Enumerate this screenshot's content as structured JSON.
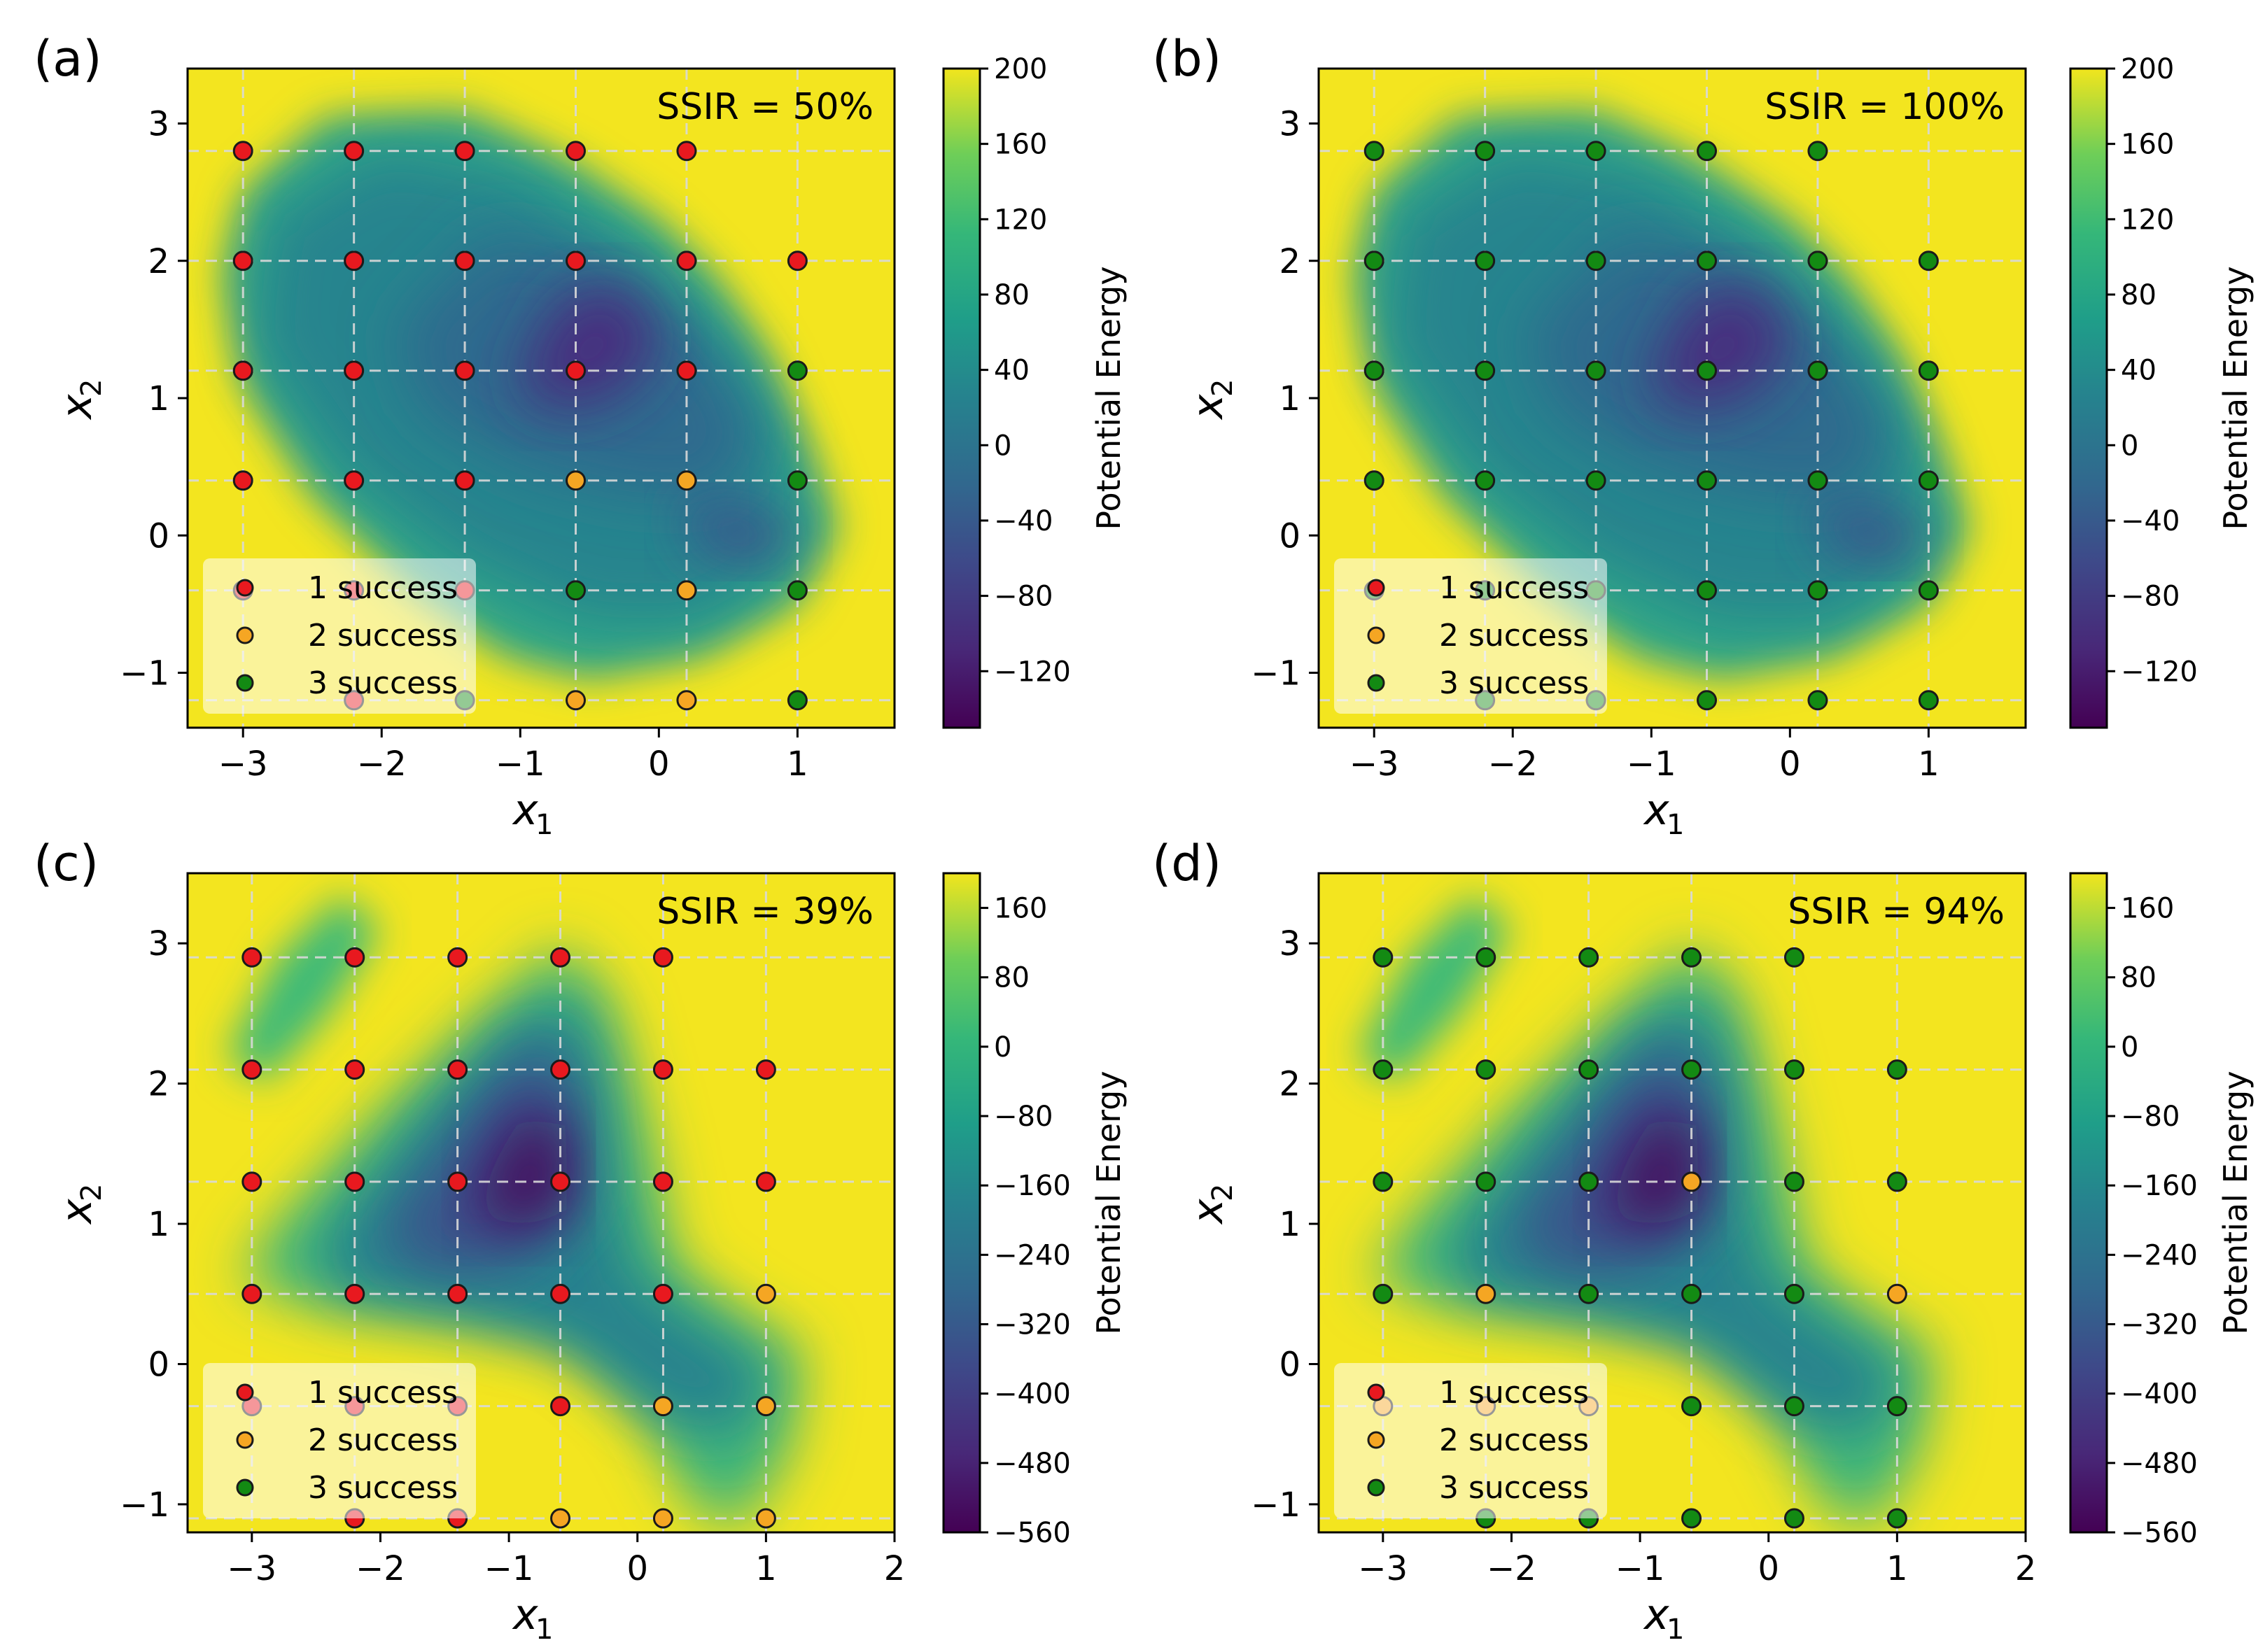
{
  "figure": {
    "colorbar_label": "Potential Energy",
    "xlabel": "x",
    "xlabel_sub": "1",
    "ylabel": "x",
    "ylabel_sub": "2"
  },
  "legend": [
    {
      "label": "1 success",
      "color": "#e8191f"
    },
    {
      "label": "2 success",
      "color": "#f5a623"
    },
    {
      "label": "3 success",
      "color": "#138a13"
    }
  ],
  "chart_data": [
    {
      "panel": "(a)",
      "type": "scatter",
      "annotation": "SSIR = 50%",
      "xlim": [
        -3.4,
        1.7
      ],
      "ylim": [
        -1.4,
        3.4
      ],
      "xticks": [
        -3,
        -2,
        -1,
        0,
        1
      ],
      "yticks": [
        -1,
        0,
        1,
        2,
        3
      ],
      "grid_x": [
        -3.0,
        -2.2,
        -1.4,
        -0.6,
        0.2,
        1.0
      ],
      "grid_y": [
        -1.2,
        -0.4,
        0.4,
        1.2,
        2.0,
        2.8
      ],
      "colorbar": {
        "min": -150,
        "max": 200,
        "ticks": [
          200,
          160,
          120,
          80,
          40,
          0,
          -40,
          -80,
          -120
        ]
      },
      "landscape": "a",
      "points": [
        {
          "x": -3.0,
          "y": 2.8,
          "s": 1
        },
        {
          "x": -2.2,
          "y": 2.8,
          "s": 1
        },
        {
          "x": -1.4,
          "y": 2.8,
          "s": 1
        },
        {
          "x": -0.6,
          "y": 2.8,
          "s": 1
        },
        {
          "x": 0.2,
          "y": 2.8,
          "s": 1
        },
        {
          "x": -3.0,
          "y": 2.0,
          "s": 1
        },
        {
          "x": -2.2,
          "y": 2.0,
          "s": 1
        },
        {
          "x": -1.4,
          "y": 2.0,
          "s": 1
        },
        {
          "x": -0.6,
          "y": 2.0,
          "s": 1
        },
        {
          "x": 0.2,
          "y": 2.0,
          "s": 1
        },
        {
          "x": 1.0,
          "y": 2.0,
          "s": 1
        },
        {
          "x": -3.0,
          "y": 1.2,
          "s": 1
        },
        {
          "x": -2.2,
          "y": 1.2,
          "s": 1
        },
        {
          "x": -1.4,
          "y": 1.2,
          "s": 1
        },
        {
          "x": -0.6,
          "y": 1.2,
          "s": 1
        },
        {
          "x": 0.2,
          "y": 1.2,
          "s": 1
        },
        {
          "x": 1.0,
          "y": 1.2,
          "s": 3
        },
        {
          "x": -3.0,
          "y": 0.4,
          "s": 1
        },
        {
          "x": -2.2,
          "y": 0.4,
          "s": 1
        },
        {
          "x": -1.4,
          "y": 0.4,
          "s": 1
        },
        {
          "x": -0.6,
          "y": 0.4,
          "s": 2
        },
        {
          "x": 0.2,
          "y": 0.4,
          "s": 2
        },
        {
          "x": 1.0,
          "y": 0.4,
          "s": 3
        },
        {
          "x": -3.0,
          "y": -0.4,
          "s": 1
        },
        {
          "x": -2.2,
          "y": -0.4,
          "s": 1
        },
        {
          "x": -1.4,
          "y": -0.4,
          "s": 1
        },
        {
          "x": -0.6,
          "y": -0.4,
          "s": 3
        },
        {
          "x": 0.2,
          "y": -0.4,
          "s": 2
        },
        {
          "x": 1.0,
          "y": -0.4,
          "s": 3
        },
        {
          "x": -2.2,
          "y": -1.2,
          "s": 1
        },
        {
          "x": -1.4,
          "y": -1.2,
          "s": 3
        },
        {
          "x": -0.6,
          "y": -1.2,
          "s": 2
        },
        {
          "x": 0.2,
          "y": -1.2,
          "s": 2
        },
        {
          "x": 1.0,
          "y": -1.2,
          "s": 3
        }
      ]
    },
    {
      "panel": "(b)",
      "type": "scatter",
      "annotation": "SSIR = 100%",
      "xlim": [
        -3.4,
        1.7
      ],
      "ylim": [
        -1.4,
        3.4
      ],
      "xticks": [
        -3,
        -2,
        -1,
        0,
        1
      ],
      "yticks": [
        -1,
        0,
        1,
        2,
        3
      ],
      "grid_x": [
        -3.0,
        -2.2,
        -1.4,
        -0.6,
        0.2,
        1.0
      ],
      "grid_y": [
        -1.2,
        -0.4,
        0.4,
        1.2,
        2.0,
        2.8
      ],
      "colorbar": {
        "min": -150,
        "max": 200,
        "ticks": [
          200,
          160,
          120,
          80,
          40,
          0,
          -40,
          -80,
          -120
        ]
      },
      "landscape": "a",
      "points": [
        {
          "x": -3.0,
          "y": 2.8,
          "s": 3
        },
        {
          "x": -2.2,
          "y": 2.8,
          "s": 3
        },
        {
          "x": -1.4,
          "y": 2.8,
          "s": 3
        },
        {
          "x": -0.6,
          "y": 2.8,
          "s": 3
        },
        {
          "x": 0.2,
          "y": 2.8,
          "s": 3
        },
        {
          "x": -3.0,
          "y": 2.0,
          "s": 3
        },
        {
          "x": -2.2,
          "y": 2.0,
          "s": 3
        },
        {
          "x": -1.4,
          "y": 2.0,
          "s": 3
        },
        {
          "x": -0.6,
          "y": 2.0,
          "s": 3
        },
        {
          "x": 0.2,
          "y": 2.0,
          "s": 3
        },
        {
          "x": 1.0,
          "y": 2.0,
          "s": 3
        },
        {
          "x": -3.0,
          "y": 1.2,
          "s": 3
        },
        {
          "x": -2.2,
          "y": 1.2,
          "s": 3
        },
        {
          "x": -1.4,
          "y": 1.2,
          "s": 3
        },
        {
          "x": -0.6,
          "y": 1.2,
          "s": 3
        },
        {
          "x": 0.2,
          "y": 1.2,
          "s": 3
        },
        {
          "x": 1.0,
          "y": 1.2,
          "s": 3
        },
        {
          "x": -3.0,
          "y": 0.4,
          "s": 3
        },
        {
          "x": -2.2,
          "y": 0.4,
          "s": 3
        },
        {
          "x": -1.4,
          "y": 0.4,
          "s": 3
        },
        {
          "x": -0.6,
          "y": 0.4,
          "s": 3
        },
        {
          "x": 0.2,
          "y": 0.4,
          "s": 3
        },
        {
          "x": 1.0,
          "y": 0.4,
          "s": 3
        },
        {
          "x": -3.0,
          "y": -0.4,
          "s": 3
        },
        {
          "x": -2.2,
          "y": -0.4,
          "s": 3
        },
        {
          "x": -1.4,
          "y": -0.4,
          "s": 3
        },
        {
          "x": -0.6,
          "y": -0.4,
          "s": 3
        },
        {
          "x": 0.2,
          "y": -0.4,
          "s": 3
        },
        {
          "x": 1.0,
          "y": -0.4,
          "s": 3
        },
        {
          "x": -2.2,
          "y": -1.2,
          "s": 3
        },
        {
          "x": -1.4,
          "y": -1.2,
          "s": 3
        },
        {
          "x": -0.6,
          "y": -1.2,
          "s": 3
        },
        {
          "x": 0.2,
          "y": -1.2,
          "s": 3
        },
        {
          "x": 1.0,
          "y": -1.2,
          "s": 3
        }
      ]
    },
    {
      "panel": "(c)",
      "type": "scatter",
      "annotation": "SSIR = 39%",
      "xlim": [
        -3.5,
        2.0
      ],
      "ylim": [
        -1.2,
        3.5
      ],
      "xticks": [
        -3,
        -2,
        -1,
        0,
        1,
        2
      ],
      "yticks": [
        -1,
        0,
        1,
        2,
        3
      ],
      "grid_x": [
        -3.0,
        -2.2,
        -1.4,
        -0.6,
        0.2,
        1.0
      ],
      "grid_y": [
        -1.1,
        -0.3,
        0.5,
        1.3,
        2.1,
        2.9
      ],
      "colorbar": {
        "min": -560,
        "max": 200,
        "ticks": [
          160,
          80,
          0,
          -80,
          -160,
          -240,
          -320,
          -400,
          -480,
          -560
        ]
      },
      "landscape": "c",
      "points": [
        {
          "x": -3.0,
          "y": 2.9,
          "s": 1
        },
        {
          "x": -2.2,
          "y": 2.9,
          "s": 1
        },
        {
          "x": -1.4,
          "y": 2.9,
          "s": 1
        },
        {
          "x": -0.6,
          "y": 2.9,
          "s": 1
        },
        {
          "x": 0.2,
          "y": 2.9,
          "s": 1
        },
        {
          "x": -3.0,
          "y": 2.1,
          "s": 1
        },
        {
          "x": -2.2,
          "y": 2.1,
          "s": 1
        },
        {
          "x": -1.4,
          "y": 2.1,
          "s": 1
        },
        {
          "x": -0.6,
          "y": 2.1,
          "s": 1
        },
        {
          "x": 0.2,
          "y": 2.1,
          "s": 1
        },
        {
          "x": 1.0,
          "y": 2.1,
          "s": 1
        },
        {
          "x": -3.0,
          "y": 1.3,
          "s": 1
        },
        {
          "x": -2.2,
          "y": 1.3,
          "s": 1
        },
        {
          "x": -1.4,
          "y": 1.3,
          "s": 1
        },
        {
          "x": -0.6,
          "y": 1.3,
          "s": 1
        },
        {
          "x": 0.2,
          "y": 1.3,
          "s": 1
        },
        {
          "x": 1.0,
          "y": 1.3,
          "s": 1
        },
        {
          "x": -3.0,
          "y": 0.5,
          "s": 1
        },
        {
          "x": -2.2,
          "y": 0.5,
          "s": 1
        },
        {
          "x": -1.4,
          "y": 0.5,
          "s": 1
        },
        {
          "x": -0.6,
          "y": 0.5,
          "s": 1
        },
        {
          "x": 0.2,
          "y": 0.5,
          "s": 1
        },
        {
          "x": 1.0,
          "y": 0.5,
          "s": 2
        },
        {
          "x": -3.0,
          "y": -0.3,
          "s": 1
        },
        {
          "x": -2.2,
          "y": -0.3,
          "s": 1
        },
        {
          "x": -1.4,
          "y": -0.3,
          "s": 1
        },
        {
          "x": -0.6,
          "y": -0.3,
          "s": 1
        },
        {
          "x": 0.2,
          "y": -0.3,
          "s": 2
        },
        {
          "x": 1.0,
          "y": -0.3,
          "s": 2
        },
        {
          "x": -2.2,
          "y": -1.1,
          "s": 1
        },
        {
          "x": -1.4,
          "y": -1.1,
          "s": 1
        },
        {
          "x": -0.6,
          "y": -1.1,
          "s": 2
        },
        {
          "x": 0.2,
          "y": -1.1,
          "s": 2
        },
        {
          "x": 1.0,
          "y": -1.1,
          "s": 2
        }
      ]
    },
    {
      "panel": "(d)",
      "type": "scatter",
      "annotation": "SSIR = 94%",
      "xlim": [
        -3.5,
        2.0
      ],
      "ylim": [
        -1.2,
        3.5
      ],
      "xticks": [
        -3,
        -2,
        -1,
        0,
        1,
        2
      ],
      "yticks": [
        -1,
        0,
        1,
        2,
        3
      ],
      "grid_x": [
        -3.0,
        -2.2,
        -1.4,
        -0.6,
        0.2,
        1.0
      ],
      "grid_y": [
        -1.1,
        -0.3,
        0.5,
        1.3,
        2.1,
        2.9
      ],
      "colorbar": {
        "min": -560,
        "max": 200,
        "ticks": [
          160,
          80,
          0,
          -80,
          -160,
          -240,
          -320,
          -400,
          -480,
          -560
        ]
      },
      "landscape": "c",
      "points": [
        {
          "x": -3.0,
          "y": 2.9,
          "s": 3
        },
        {
          "x": -2.2,
          "y": 2.9,
          "s": 3
        },
        {
          "x": -1.4,
          "y": 2.9,
          "s": 3
        },
        {
          "x": -0.6,
          "y": 2.9,
          "s": 3
        },
        {
          "x": 0.2,
          "y": 2.9,
          "s": 3
        },
        {
          "x": -3.0,
          "y": 2.1,
          "s": 3
        },
        {
          "x": -2.2,
          "y": 2.1,
          "s": 3
        },
        {
          "x": -1.4,
          "y": 2.1,
          "s": 3
        },
        {
          "x": -0.6,
          "y": 2.1,
          "s": 3
        },
        {
          "x": 0.2,
          "y": 2.1,
          "s": 3
        },
        {
          "x": 1.0,
          "y": 2.1,
          "s": 3
        },
        {
          "x": -3.0,
          "y": 1.3,
          "s": 3
        },
        {
          "x": -2.2,
          "y": 1.3,
          "s": 3
        },
        {
          "x": -1.4,
          "y": 1.3,
          "s": 3
        },
        {
          "x": -0.6,
          "y": 1.3,
          "s": 2
        },
        {
          "x": 0.2,
          "y": 1.3,
          "s": 3
        },
        {
          "x": 1.0,
          "y": 1.3,
          "s": 3
        },
        {
          "x": -3.0,
          "y": 0.5,
          "s": 3
        },
        {
          "x": -2.2,
          "y": 0.5,
          "s": 2
        },
        {
          "x": -1.4,
          "y": 0.5,
          "s": 3
        },
        {
          "x": -0.6,
          "y": 0.5,
          "s": 3
        },
        {
          "x": 0.2,
          "y": 0.5,
          "s": 3
        },
        {
          "x": 1.0,
          "y": 0.5,
          "s": 2
        },
        {
          "x": -3.0,
          "y": -0.3,
          "s": 2
        },
        {
          "x": -2.2,
          "y": -0.3,
          "s": 2
        },
        {
          "x": -1.4,
          "y": -0.3,
          "s": 2
        },
        {
          "x": -0.6,
          "y": -0.3,
          "s": 3
        },
        {
          "x": 0.2,
          "y": -0.3,
          "s": 3
        },
        {
          "x": 1.0,
          "y": -0.3,
          "s": 3
        },
        {
          "x": -2.2,
          "y": -1.1,
          "s": 3
        },
        {
          "x": -1.4,
          "y": -1.1,
          "s": 3
        },
        {
          "x": -0.6,
          "y": -1.1,
          "s": 3
        },
        {
          "x": 0.2,
          "y": -1.1,
          "s": 3
        },
        {
          "x": 1.0,
          "y": -1.1,
          "s": 3
        }
      ]
    }
  ]
}
